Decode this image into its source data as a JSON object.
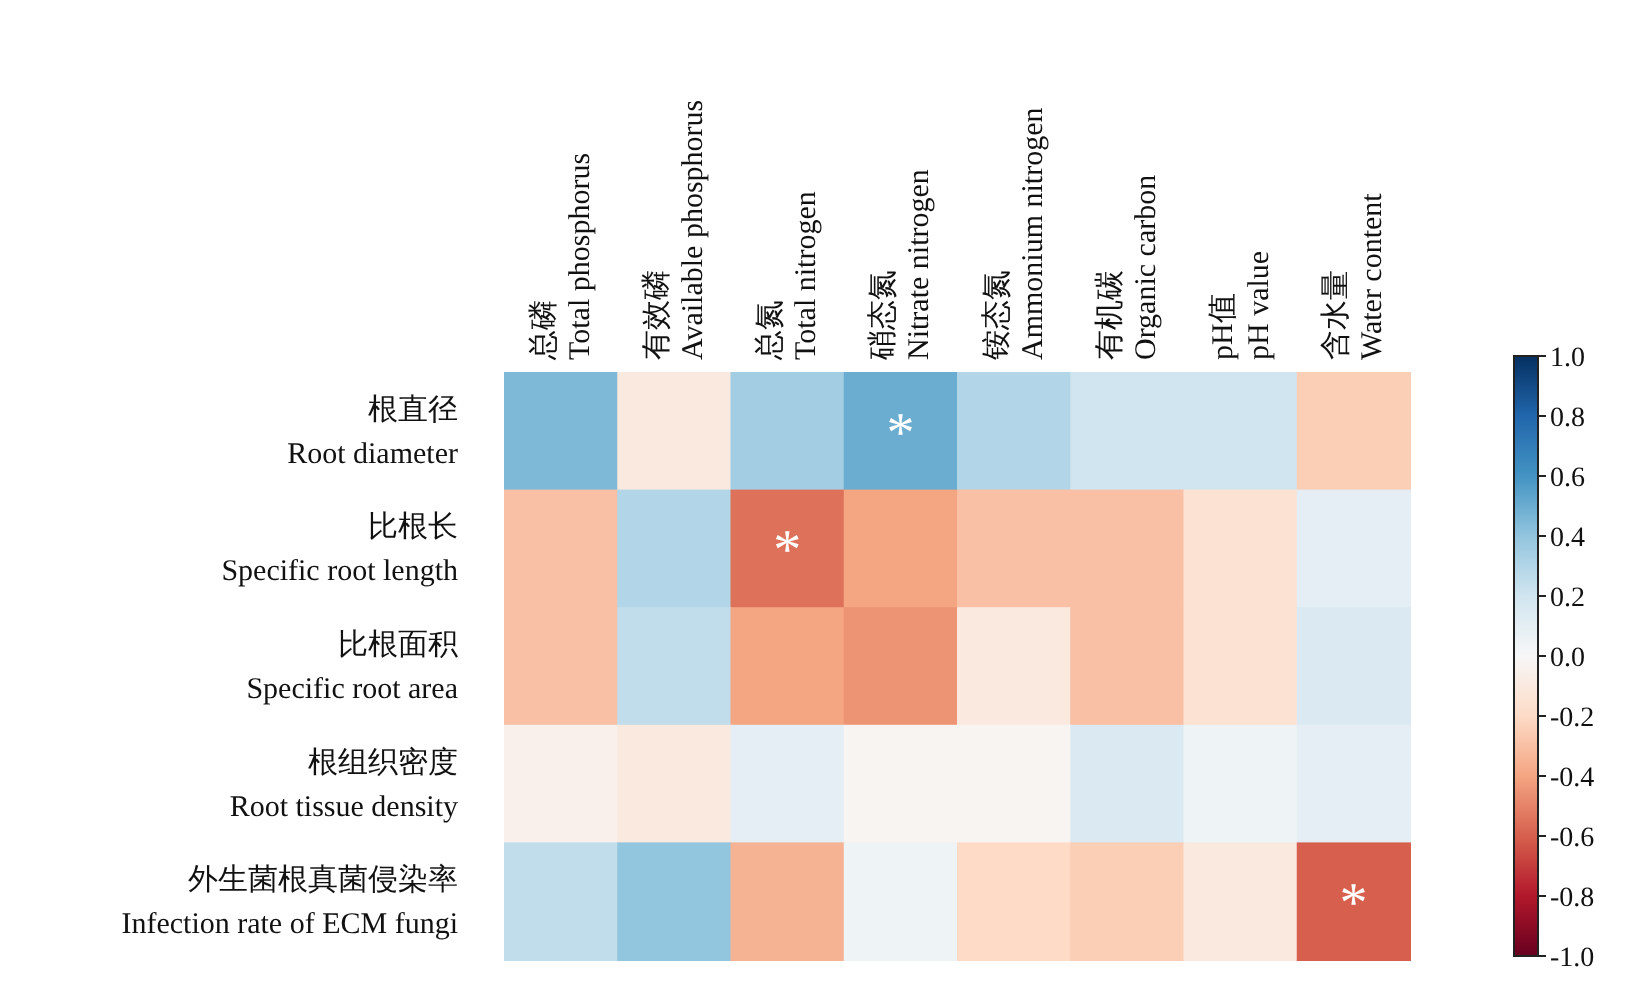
{
  "chart_data": {
    "type": "heatmap",
    "categories": [
      "总磷\nTotal phosphorus",
      "有效磷\nAvailable  phosphorus",
      "总氮\nTotal nitrogen",
      "硝态氮\nNitrate nitrogen",
      "铵态氮\nAmmonium nitrogen",
      "有机碳\nOrganic carbon",
      "pH值\npH value",
      "含水量\nWater content"
    ],
    "y_categories": [
      "根直径\nRoot diameter",
      "比根长\nSpecific root length",
      "比根面积\nSpecific root area",
      "根组织密度\nRoot tissue density",
      "外生菌根真菌侵染率\nInfection rate of ECM fungi"
    ],
    "cells": [
      [
        0.45,
        -0.1,
        0.35,
        0.5,
        0.3,
        0.2,
        0.2,
        -0.25
      ],
      [
        -0.3,
        0.3,
        -0.55,
        -0.4,
        -0.3,
        -0.3,
        -0.15,
        0.1
      ],
      [
        -0.3,
        0.25,
        -0.4,
        -0.45,
        -0.1,
        -0.3,
        -0.15,
        0.15
      ],
      [
        -0.05,
        -0.1,
        0.1,
        -0.02,
        -0.02,
        0.15,
        0.05,
        0.1
      ],
      [
        0.25,
        0.4,
        -0.35,
        0.05,
        -0.2,
        -0.25,
        -0.1,
        -0.6
      ]
    ],
    "cell_labels": [
      [
        null,
        null,
        null,
        "*",
        null,
        null,
        null,
        null
      ],
      [
        null,
        null,
        "*",
        null,
        null,
        null,
        null,
        null
      ],
      [
        null,
        null,
        null,
        null,
        null,
        null,
        null,
        null
      ],
      [
        null,
        null,
        null,
        null,
        null,
        null,
        null,
        null
      ],
      [
        null,
        null,
        null,
        null,
        null,
        null,
        null,
        "*"
      ]
    ],
    "clim": [
      -1.0,
      1.0
    ],
    "cticks": [
      {
        "value": 1.0,
        "label": "1.0"
      },
      0.8,
      0.6,
      0.4,
      0.2,
      {
        "value": 0,
        "label": "0.0"
      },
      -0.2,
      -0.4,
      -0.6,
      -0.8,
      {
        "value": -1.0,
        "label": "-1.0"
      }
    ]
  }
}
